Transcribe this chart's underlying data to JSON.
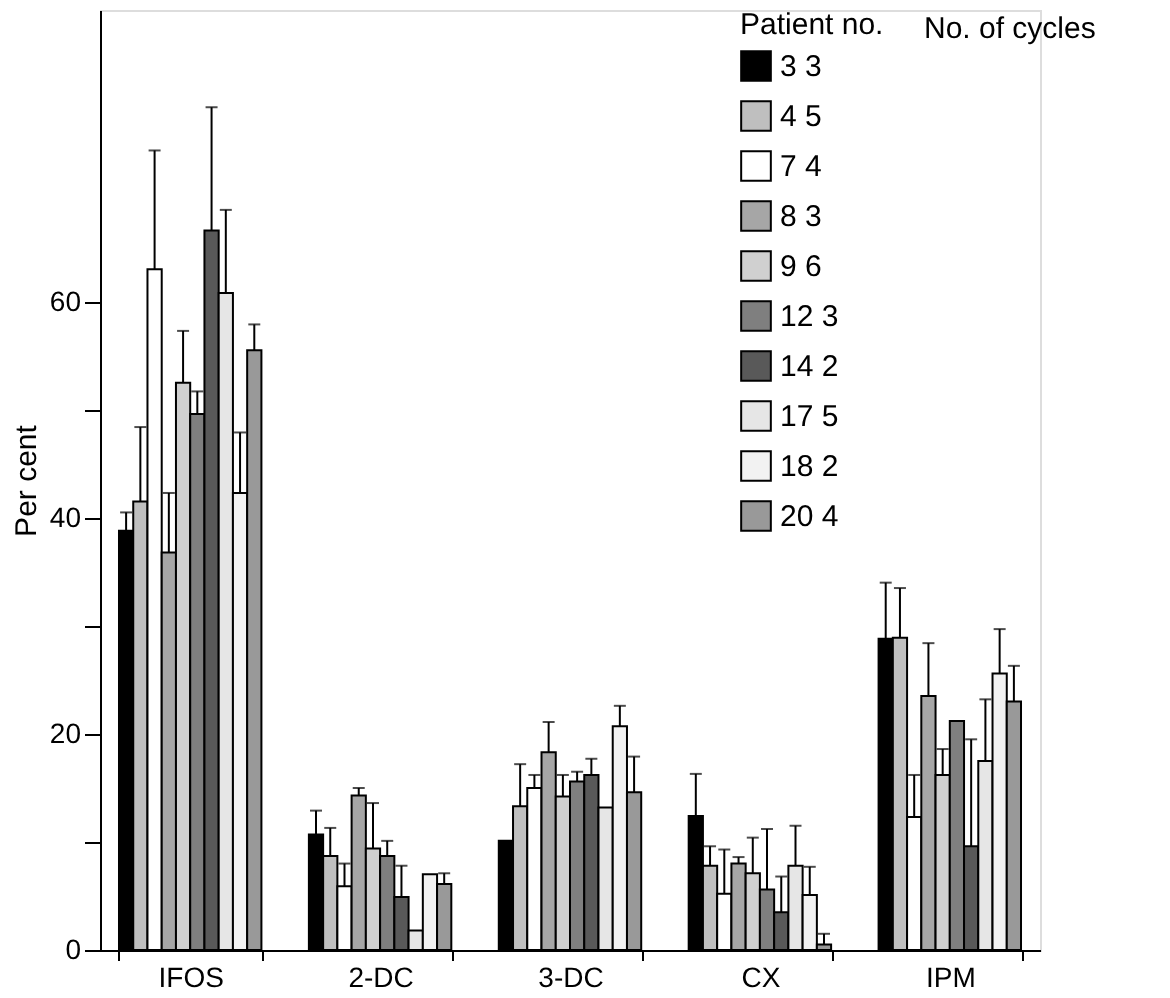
{
  "chart_data": {
    "type": "bar",
    "ylabel": "Per cent",
    "legend_title": "Patient no.",
    "annotations": [
      "No. of cycles"
    ],
    "categories": [
      "IFOS",
      "2-DC",
      "3-DC",
      "CX",
      "IPM"
    ],
    "ylim": [
      0,
      87
    ],
    "yticks": [
      0,
      {
        "value": 10,
        "label": null
      },
      20,
      {
        "value": 30,
        "label": null
      },
      40,
      {
        "value": 50,
        "label": null
      },
      60
    ],
    "grid": false,
    "legend": "top right",
    "series": [
      {
        "name": "3 3",
        "color": "#000000",
        "values": [
          38.8,
          10.7,
          10.1,
          12.4,
          28.8
        ],
        "errors": [
          [
            38.8,
            40.5
          ],
          [
            10.7,
            12.9
          ],
          null,
          [
            12.4,
            16.3
          ],
          [
            28.8,
            34.0
          ]
        ]
      },
      {
        "name": "4 5",
        "color": "#bfbfbf",
        "values": [
          41.5,
          8.7,
          13.3,
          7.8,
          28.9
        ],
        "errors": [
          [
            41.5,
            48.4
          ],
          [
            8.7,
            11.3
          ],
          [
            13.3,
            17.2
          ],
          [
            7.8,
            9.6
          ],
          [
            28.9,
            33.5
          ]
        ]
      },
      {
        "name": "7 4",
        "color": "#ffffff",
        "values": [
          63.0,
          5.9,
          15.0,
          5.2,
          12.3
        ],
        "errors": [
          [
            63.0,
            74.0
          ],
          [
            5.9,
            8.0
          ],
          [
            15.0,
            16.2
          ],
          [
            5.2,
            9.3
          ],
          [
            12.3,
            16.2
          ]
        ]
      },
      {
        "name": "8 3",
        "color": "#a6a6a6",
        "values": [
          36.8,
          14.3,
          18.3,
          8.0,
          23.5
        ],
        "errors": [
          [
            36.8,
            42.3
          ],
          [
            14.3,
            15.0
          ],
          [
            18.3,
            21.1
          ],
          [
            8.0,
            8.6
          ],
          [
            23.5,
            28.4
          ]
        ]
      },
      {
        "name": "9 6",
        "color": "#d0d0d0",
        "values": [
          52.5,
          9.4,
          14.2,
          7.1,
          16.2
        ],
        "errors": [
          [
            52.5,
            57.3
          ],
          [
            9.4,
            13.6
          ],
          [
            14.2,
            16.2
          ],
          [
            7.1,
            10.4
          ],
          [
            16.2,
            18.6
          ]
        ]
      },
      {
        "name": "12 3",
        "color": "#7f7f7f",
        "values": [
          49.6,
          8.7,
          15.6,
          5.6,
          21.2
        ],
        "errors": [
          [
            49.6,
            51.7
          ],
          [
            8.7,
            10.1
          ],
          [
            15.6,
            16.5
          ],
          [
            5.6,
            11.2
          ],
          null
        ]
      },
      {
        "name": "14 2",
        "color": "#595959",
        "values": [
          66.6,
          4.9,
          16.2,
          3.5,
          9.6
        ],
        "errors": [
          [
            66.6,
            78.0
          ],
          [
            4.9,
            7.8
          ],
          [
            16.2,
            17.7
          ],
          [
            3.5,
            6.8
          ],
          [
            9.6,
            19.5
          ]
        ]
      },
      {
        "name": "17 5",
        "color": "#e6e6e6",
        "values": [
          60.8,
          1.8,
          13.2,
          7.8,
          17.5
        ],
        "errors": [
          [
            60.8,
            68.5
          ],
          null,
          null,
          [
            7.8,
            11.5
          ],
          [
            17.5,
            23.2
          ]
        ]
      },
      {
        "name": "18 2",
        "color": "#f2f2f2",
        "values": [
          42.3,
          7.0,
          20.7,
          5.1,
          25.6
        ],
        "errors": [
          [
            42.3,
            47.9
          ],
          null,
          [
            20.7,
            22.6
          ],
          [
            5.1,
            7.7
          ],
          [
            25.6,
            29.7
          ]
        ]
      },
      {
        "name": "20 4",
        "color": "#999999",
        "values": [
          55.5,
          6.1,
          14.6,
          0.5,
          23.0
        ],
        "errors": [
          [
            55.5,
            57.9
          ],
          [
            6.1,
            7.1
          ],
          [
            14.6,
            17.9
          ],
          [
            0.5,
            1.5
          ],
          [
            23.0,
            26.3
          ]
        ]
      }
    ]
  }
}
